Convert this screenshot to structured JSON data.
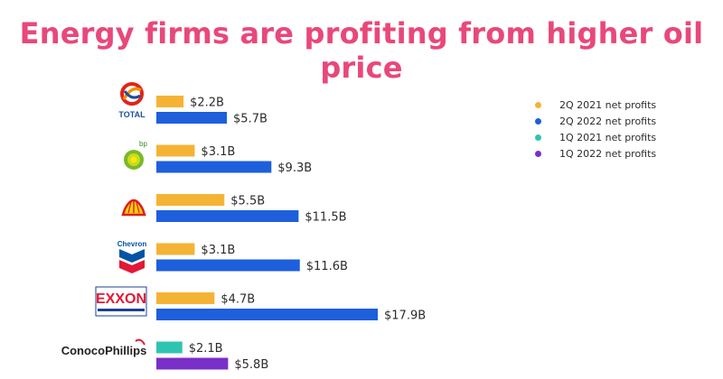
{
  "chart_data": {
    "type": "bar",
    "orientation": "horizontal",
    "title": "Energy firms are profiting from higher oil price",
    "categories": [
      "Total",
      "BP",
      "Shell",
      "Chevron",
      "ExxonMobil",
      "ConocoPhillips"
    ],
    "logos": {
      "total_text": "TOTAL",
      "bp_text": "bp",
      "chevron_text": "Chevron",
      "exxon_text": "EXXON",
      "conoco_text": "ConocoPhillips"
    },
    "bars": [
      {
        "company": "Total",
        "series": "2Q 2021 net profits",
        "value": 2.2,
        "label": "$2.2B"
      },
      {
        "company": "Total",
        "series": "2Q 2022 net profits",
        "value": 5.7,
        "label": "$5.7B"
      },
      {
        "company": "BP",
        "series": "2Q 2021 net profits",
        "value": 3.1,
        "label": "$3.1B"
      },
      {
        "company": "BP",
        "series": "2Q 2022 net profits",
        "value": 9.3,
        "label": "$9.3B"
      },
      {
        "company": "Shell",
        "series": "2Q 2021 net profits",
        "value": 5.5,
        "label": "$5.5B"
      },
      {
        "company": "Shell",
        "series": "2Q 2022 net profits",
        "value": 11.5,
        "label": "$11.5B"
      },
      {
        "company": "Chevron",
        "series": "2Q 2021 net profits",
        "value": 3.1,
        "label": "$3.1B"
      },
      {
        "company": "Chevron",
        "series": "2Q 2022 net profits",
        "value": 11.6,
        "label": "$11.6B"
      },
      {
        "company": "ExxonMobil",
        "series": "2Q 2021 net profits",
        "value": 4.7,
        "label": "$4.7B"
      },
      {
        "company": "ExxonMobil",
        "series": "2Q 2022 net profits",
        "value": 17.9,
        "label": "$17.9B"
      },
      {
        "company": "ConocoPhillips",
        "series": "1Q 2021 net profits",
        "value": 2.1,
        "label": "$2.1B"
      },
      {
        "company": "ConocoPhillips",
        "series": "1Q 2022 net profits",
        "value": 5.8,
        "label": "$5.8B"
      }
    ],
    "legend": [
      {
        "name": "2Q 2021 net profits",
        "color": "#f5b335"
      },
      {
        "name": "2Q 2022 net profits",
        "color": "#1e5fdc"
      },
      {
        "name": "1Q 2021 net profits",
        "color": "#2fc4b2"
      },
      {
        "name": "1Q 2022 net profits",
        "color": "#7a2fc8"
      }
    ],
    "legend_position": "top-right",
    "xlim": [
      0,
      18
    ],
    "grid": false
  },
  "colors": {
    "title": "#e8487a",
    "label_text": "#2b2b2b"
  }
}
